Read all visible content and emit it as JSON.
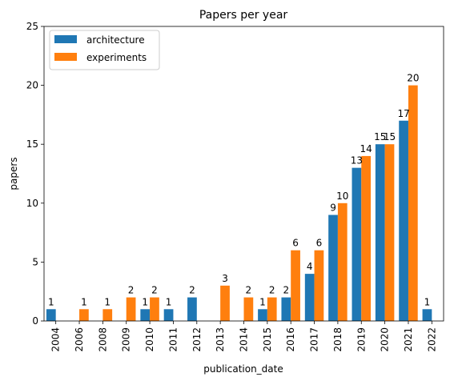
{
  "chart_data": {
    "type": "bar",
    "title": "Papers per year",
    "xlabel": "publication_date",
    "ylabel": "papers",
    "ylim": [
      0,
      25
    ],
    "yticks": [
      0,
      5,
      10,
      15,
      20,
      25
    ],
    "categories": [
      "2004",
      "2006",
      "2008",
      "2009",
      "2010",
      "2011",
      "2012",
      "2013",
      "2014",
      "2015",
      "2016",
      "2017",
      "2018",
      "2019",
      "2020",
      "2021",
      "2022"
    ],
    "series": [
      {
        "name": "architecture",
        "color": "#1f77b4",
        "values": [
          1,
          0,
          0,
          0,
          1,
          1,
          2,
          0,
          0,
          1,
          2,
          4,
          9,
          13,
          15,
          17,
          1
        ]
      },
      {
        "name": "experiments",
        "color": "#ff7f0e",
        "values": [
          0,
          1,
          1,
          2,
          2,
          0,
          0,
          3,
          2,
          2,
          6,
          6,
          10,
          14,
          15,
          20,
          0
        ]
      }
    ],
    "legend_position": "top-left",
    "grid": false,
    "bar_labels": true
  }
}
